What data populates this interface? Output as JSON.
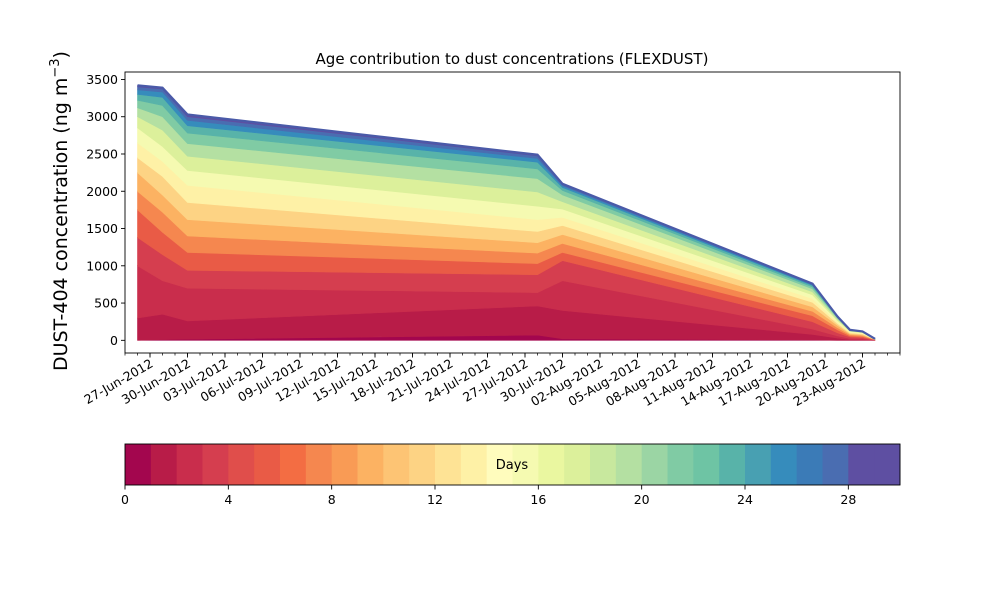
{
  "chart_data": {
    "type": "area",
    "stacked": true,
    "title": "Age contribution to dust concentrations (FLEXDUST)",
    "ylabel_main": "DUST-404 concentration (ng m",
    "ylabel_sup": "−3",
    "ylabel_close": ")",
    "xlabel": "",
    "x_dates": [
      "2012-06-26",
      "2012-06-28",
      "2012-06-30",
      "2012-07-28",
      "2012-07-30",
      "2012-08-19",
      "2012-08-21",
      "2012-08-22",
      "2012-08-23",
      "2012-08-24"
    ],
    "total": [
      3420,
      3390,
      3030,
      2490,
      2100,
      760,
      320,
      140,
      120,
      20
    ],
    "layer_bounds": {
      "age_days": [
        0,
        1,
        2,
        3,
        4,
        6,
        8,
        10,
        12,
        14,
        16,
        18,
        20,
        22,
        24,
        26,
        28,
        30
      ],
      "values": [
        [
          0,
          0,
          0,
          0,
          0,
          0,
          0,
          0,
          0,
          0
        ],
        [
          0,
          10,
          15,
          70,
          20,
          5,
          0,
          0,
          0,
          0
        ],
        [
          300,
          350,
          260,
          460,
          400,
          80,
          30,
          10,
          5,
          1
        ],
        [
          1000,
          800,
          700,
          640,
          800,
          150,
          60,
          25,
          20,
          3
        ],
        [
          1380,
          1150,
          940,
          880,
          1070,
          250,
          100,
          45,
          35,
          5
        ],
        [
          1750,
          1450,
          1180,
          1030,
          1180,
          330,
          140,
          60,
          50,
          7
        ],
        [
          2000,
          1720,
          1400,
          1170,
          1300,
          390,
          170,
          75,
          63,
          9
        ],
        [
          2250,
          1950,
          1620,
          1310,
          1420,
          450,
          200,
          88,
          74,
          11
        ],
        [
          2450,
          2200,
          1850,
          1460,
          1540,
          510,
          225,
          100,
          85,
          12
        ],
        [
          2650,
          2400,
          2080,
          1620,
          1650,
          560,
          245,
          110,
          94,
          14
        ],
        [
          2850,
          2600,
          2280,
          1800,
          1760,
          610,
          265,
          120,
          102,
          15
        ],
        [
          3000,
          2820,
          2470,
          1990,
          1860,
          650,
          280,
          127,
          108,
          16
        ],
        [
          3120,
          3000,
          2640,
          2170,
          1950,
          690,
          295,
          132,
          112,
          17
        ],
        [
          3220,
          3150,
          2780,
          2300,
          2010,
          715,
          305,
          135,
          115,
          18
        ],
        [
          3300,
          3260,
          2880,
          2390,
          2050,
          735,
          312,
          137,
          117,
          19
        ],
        [
          3360,
          3330,
          2950,
          2440,
          2075,
          748,
          316,
          139,
          119,
          19
        ],
        [
          3400,
          3370,
          3000,
          2475,
          2090,
          756,
          318,
          140,
          120,
          20
        ],
        [
          3420,
          3390,
          3030,
          2490,
          2100,
          760,
          320,
          140,
          120,
          20
        ]
      ]
    },
    "xlim": [
      "2012-06-25",
      "2012-08-26"
    ],
    "ylim": [
      -170,
      3600
    ],
    "yticks": [
      0,
      500,
      1000,
      1500,
      2000,
      2500,
      3000,
      3500
    ],
    "xtick_dates": [
      "2012-06-27",
      "2012-06-30",
      "2012-07-03",
      "2012-07-06",
      "2012-07-09",
      "2012-07-12",
      "2012-07-15",
      "2012-07-18",
      "2012-07-21",
      "2012-07-24",
      "2012-07-27",
      "2012-07-30",
      "2012-08-02",
      "2012-08-05",
      "2012-08-08",
      "2012-08-11",
      "2012-08-14",
      "2012-08-17",
      "2012-08-20",
      "2012-08-23"
    ],
    "xtick_labels": [
      "27-Jun-2012",
      "30-Jun-2012",
      "03-Jul-2012",
      "06-Jul-2012",
      "09-Jul-2012",
      "12-Jul-2012",
      "15-Jul-2012",
      "18-Jul-2012",
      "21-Jul-2012",
      "24-Jul-2012",
      "27-Jul-2012",
      "30-Jul-2012",
      "02-Aug-2012",
      "05-Aug-2012",
      "08-Aug-2012",
      "11-Aug-2012",
      "14-Aug-2012",
      "17-Aug-2012",
      "20-Aug-2012",
      "23-Aug-2012"
    ],
    "x_minor_ticks": "daily",
    "grid": false,
    "colorbar": {
      "label": "Days",
      "range": [
        0,
        30
      ],
      "ticks": [
        0,
        4,
        8,
        12,
        16,
        20,
        24,
        28
      ],
      "tick_labels": [
        "0",
        "4",
        "8",
        "12",
        "16",
        "20",
        "24",
        "28"
      ],
      "colormap": "Spectral",
      "segment_colors": [
        "#a3064e",
        "#b81c48",
        "#c92d4c",
        "#d53e4f",
        "#e04e4b",
        "#e95b46",
        "#f36d43",
        "#f5874f",
        "#f99b55",
        "#fcb262",
        "#fdc474",
        "#fdd384",
        "#fee395",
        "#fef1a6",
        "#fffcbd",
        "#f5fab1",
        "#eaf7a0",
        "#dcf09b",
        "#c8e89e",
        "#b4e0a2",
        "#9bd5a4",
        "#80cba4",
        "#6ec4a4",
        "#58b3a9",
        "#48a0b2",
        "#368cbc",
        "#3b7bb7",
        "#4a6db1",
        "#5e4fa2",
        "#5e4fa2"
      ]
    }
  }
}
